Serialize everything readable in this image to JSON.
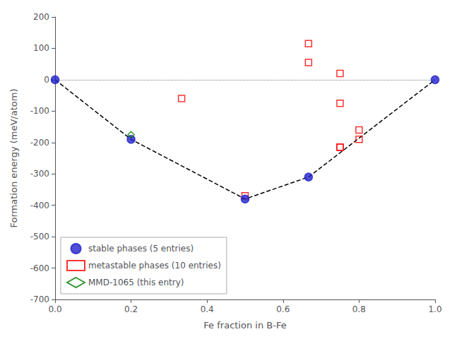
{
  "chart_data": {
    "type": "scatter",
    "xlabel": "Fe fraction in B-Fe",
    "ylabel": "Formation energy (meV/atom)",
    "xlim": [
      0.0,
      1.0
    ],
    "ylim": [
      -700,
      200
    ],
    "xticks": [
      {
        "value": 0.0,
        "label": "0.0"
      },
      0.2,
      0.4,
      0.6,
      0.8,
      {
        "value": 1.0,
        "label": "1.0"
      }
    ],
    "yticks": [
      -700,
      -600,
      -500,
      -400,
      -300,
      -200,
      -100,
      0,
      100,
      200
    ],
    "grid": false,
    "legend": "lower left",
    "series": [
      {
        "type": "hline",
        "values": [
          0
        ],
        "color": "gray",
        "line_style": "dotted"
      },
      {
        "type": "line",
        "x": [
          0.0,
          0.2,
          0.5,
          0.667,
          1.0
        ],
        "values": [
          0,
          -190,
          -380,
          -310,
          0
        ],
        "color": "black",
        "line_style": "dashed"
      },
      {
        "type": "scatter",
        "name": "metastable phases (10 entries)",
        "x": [
          0.333,
          0.5,
          0.667,
          0.667,
          0.75,
          0.75,
          0.75,
          0.75,
          0.8,
          0.8
        ],
        "values": [
          -60,
          -370,
          55,
          115,
          20,
          -75,
          -215,
          -215,
          -190,
          -160
        ],
        "color": "red",
        "marker": "square_open"
      },
      {
        "type": "scatter",
        "name": "stable phases (5 entries)",
        "x": [
          0.0,
          0.2,
          0.5,
          0.667,
          1.0
        ],
        "values": [
          0,
          -190,
          -380,
          -310,
          0
        ],
        "color": "#2222cc",
        "marker": "circle"
      },
      {
        "type": "scatter",
        "name": "MMD-1065 (this entry)",
        "x": [
          0.2
        ],
        "values": [
          -175
        ],
        "color": "green",
        "marker": "diamond_open"
      }
    ],
    "legend_order": [
      "stable phases (5 entries)",
      "metastable phases (10 entries)",
      "MMD-1065 (this entry)"
    ]
  }
}
